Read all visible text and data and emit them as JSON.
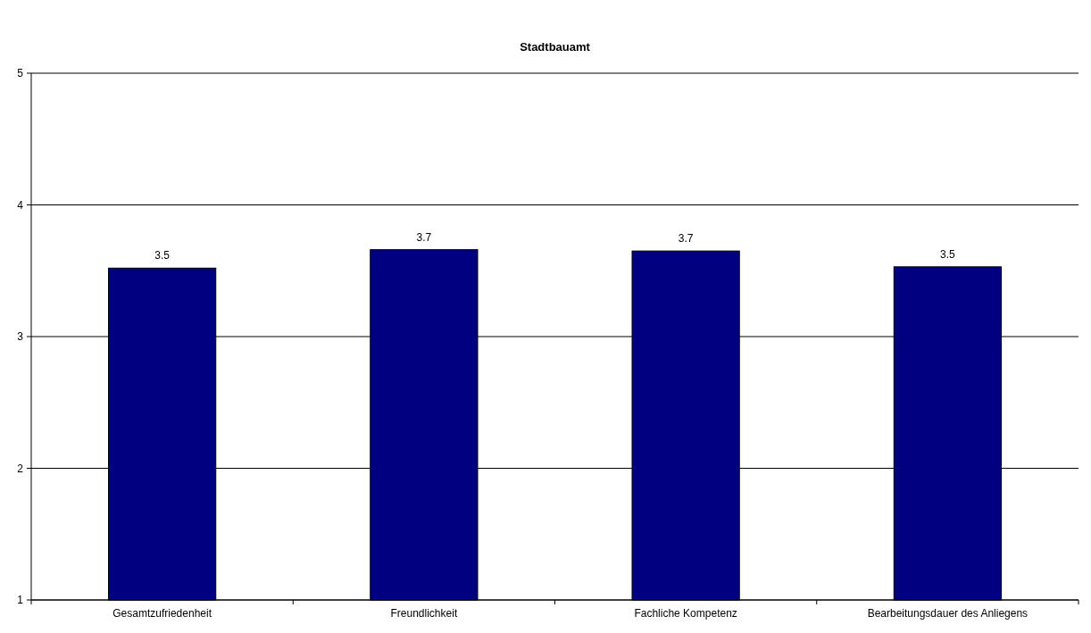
{
  "chart_data": {
    "type": "bar",
    "title": "Stadtbauamt",
    "categories": [
      "Gesamtzufriedenheit",
      "Freundlichkeit",
      "Fachliche Kompetenz",
      "Bearbeitungsdauer des Anliegens"
    ],
    "values": [
      3.52,
      3.66,
      3.65,
      3.53
    ],
    "value_labels": [
      "3.5",
      "3.7",
      "3.7",
      "3.5"
    ],
    "color": "#000080",
    "ylim": [
      1,
      5
    ],
    "yticks": [
      1,
      2,
      3,
      4,
      5
    ],
    "grid": "y"
  }
}
